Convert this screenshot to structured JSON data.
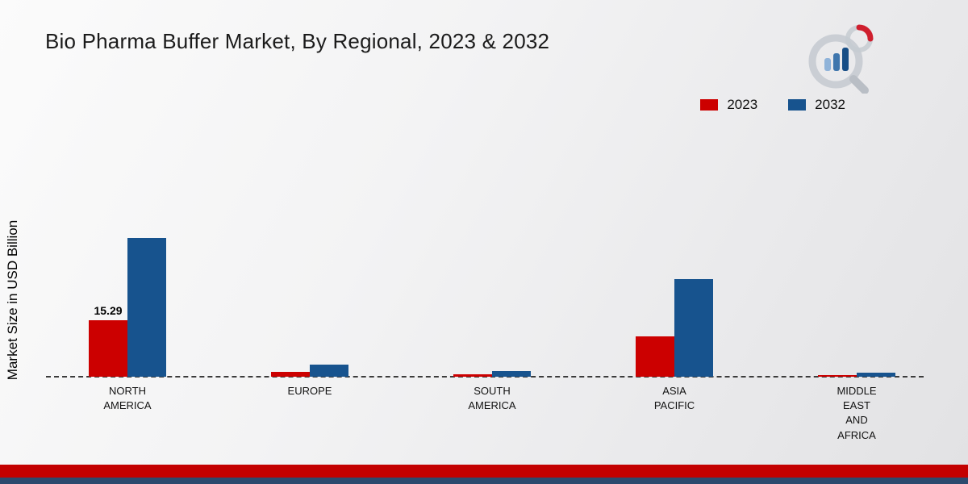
{
  "title": "Bio Pharma Buffer Market, By Regional, 2023 & 2032",
  "ylabel": "Market Size in USD Billion",
  "legend": [
    {
      "label": "2023",
      "color": "#cc0000"
    },
    {
      "label": "2032",
      "color": "#17538e"
    }
  ],
  "chart_data": {
    "type": "bar",
    "title": "Bio Pharma Buffer Market, By Regional, 2023 & 2032",
    "ylabel": "Market Size in USD Billion",
    "ylim": [
      0,
      40
    ],
    "grid": false,
    "legend_position": "top-right",
    "baseline_style": "dashed",
    "categories": [
      "NORTH AMERICA",
      "EUROPE",
      "SOUTH AMERICA",
      "ASIA PACIFIC",
      "MIDDLE EAST AND AFRICA"
    ],
    "category_lines": [
      [
        "NORTH",
        "AMERICA"
      ],
      [
        "EUROPE"
      ],
      [
        "SOUTH",
        "AMERICA"
      ],
      [
        "ASIA",
        "PACIFIC"
      ],
      [
        "MIDDLE",
        "EAST",
        "AND",
        "AFRICA"
      ]
    ],
    "series": [
      {
        "name": "2023",
        "color": "#cc0000",
        "values": [
          15.29,
          1.4,
          0.6,
          11.0,
          0.5
        ]
      },
      {
        "name": "2032",
        "color": "#17538e",
        "values": [
          37.5,
          3.2,
          1.5,
          26.5,
          1.1
        ]
      }
    ],
    "annotations": [
      {
        "series": "2023",
        "category": "NORTH AMERICA",
        "text": "15.29"
      }
    ]
  }
}
